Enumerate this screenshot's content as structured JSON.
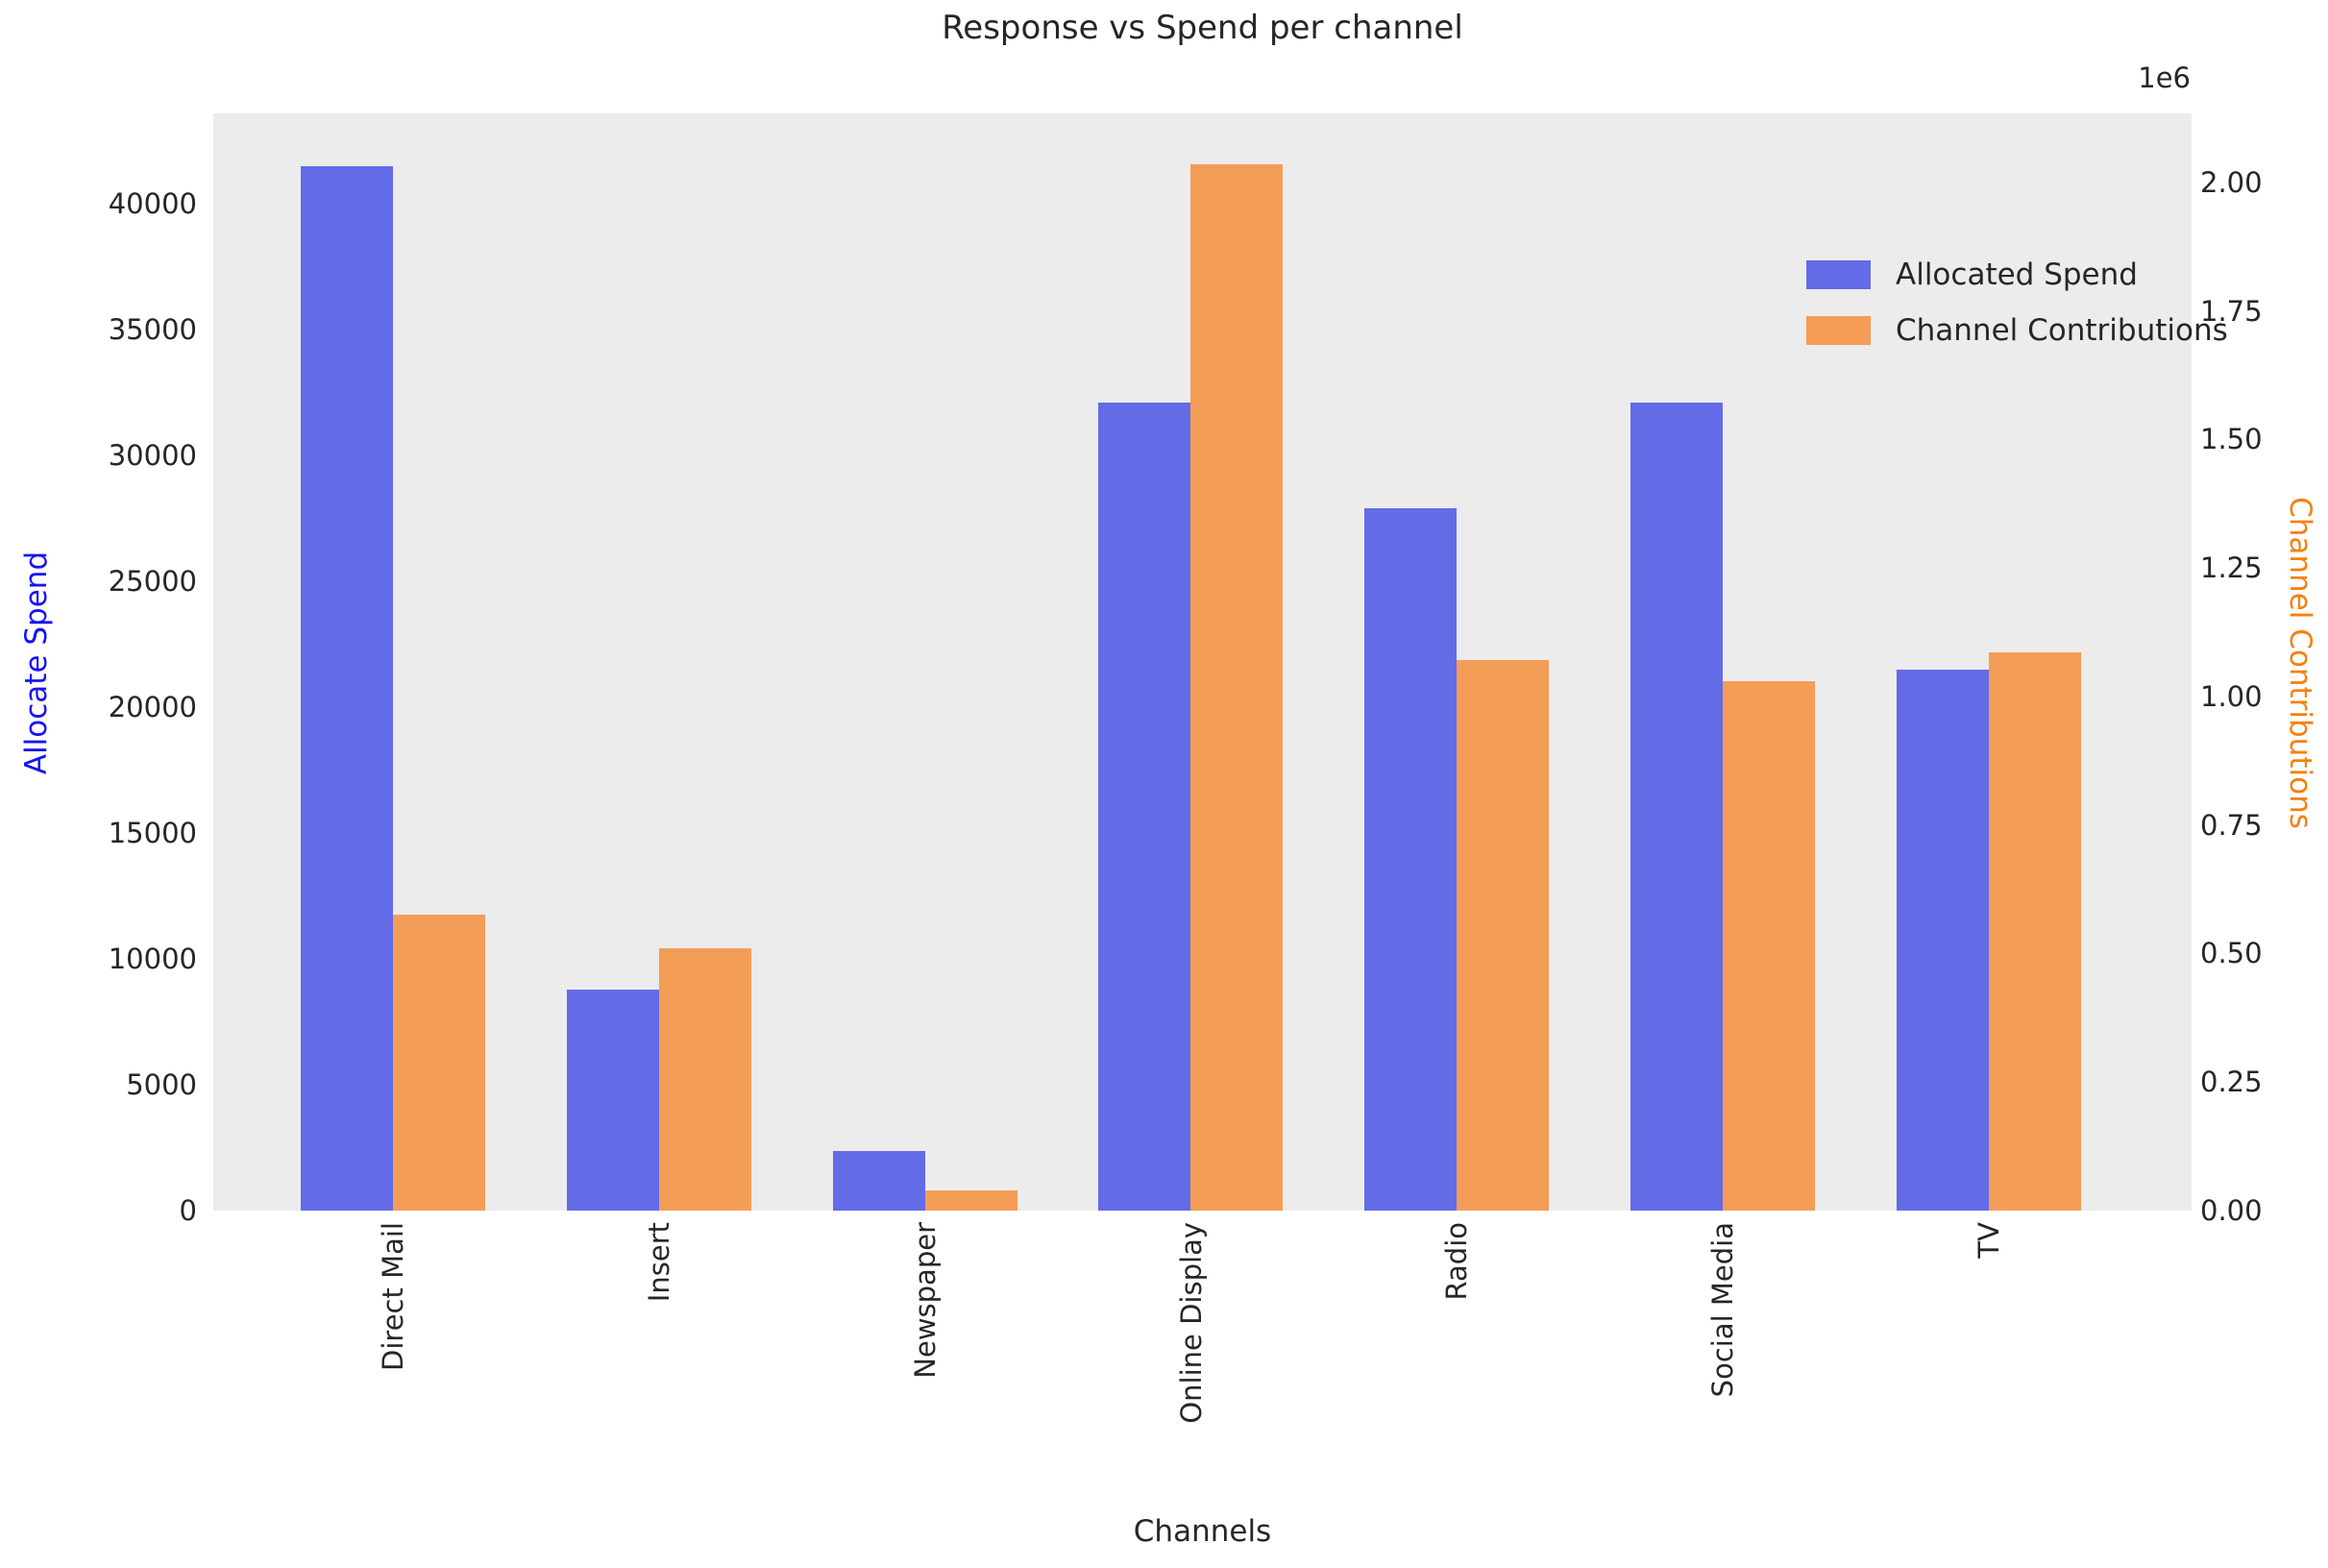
{
  "chart_data": {
    "type": "bar",
    "title": "Response vs Spend per channel",
    "xlabel": "Channels",
    "ylabel_left": "Allocate Spend",
    "ylabel_right": "Channel Contributions",
    "right_axis_multiplier": "1e6",
    "categories": [
      "Direct Mail",
      "Insert",
      "Newspaper",
      "Online Display",
      "Radio",
      "Social Media",
      "TV"
    ],
    "series": [
      {
        "name": "Allocated Spend",
        "axis": "left",
        "color": "#636be7",
        "values": [
          41500,
          8800,
          2350,
          32100,
          27900,
          32100,
          21500
        ]
      },
      {
        "name": "Channel Contributions",
        "axis": "right",
        "color": "#f49d57",
        "values": [
          575000,
          510000,
          40000,
          2035000,
          1070000,
          1030000,
          1085000
        ]
      }
    ],
    "ylim_left": [
      0,
      43600
    ],
    "ylim_right": [
      0,
      2134000
    ],
    "yticks_left": [
      "0",
      "5000",
      "10000",
      "15000",
      "20000",
      "25000",
      "30000",
      "35000",
      "40000"
    ],
    "ytick_values_left": [
      0,
      5000,
      10000,
      15000,
      20000,
      25000,
      30000,
      35000,
      40000
    ],
    "yticks_right": [
      "0.00",
      "0.25",
      "0.50",
      "0.75",
      "1.00",
      "1.25",
      "1.50",
      "1.75",
      "2.00"
    ],
    "ytick_values_right": [
      0,
      250000,
      500000,
      750000,
      1000000,
      1250000,
      1500000,
      1750000,
      2000000
    ],
    "grid": false,
    "legend_position": "upper right",
    "plot_bg_color": "#ececec",
    "text_color": "#262626",
    "ylabel_left_color": "#1414f0",
    "ylabel_right_color": "#f77f0e"
  },
  "legend": {
    "items": [
      {
        "label": "Allocated Spend",
        "color": "#636be7"
      },
      {
        "label": "Channel Contributions",
        "color": "#f49d57"
      }
    ]
  }
}
